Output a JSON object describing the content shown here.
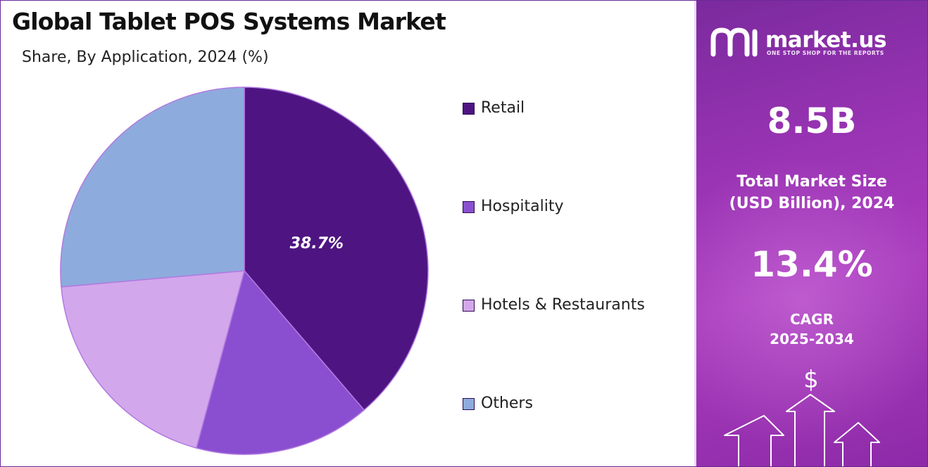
{
  "chart_data": {
    "type": "pie",
    "title": "Global Tablet POS Systems Market",
    "subtitle": "Share, By Application, 2024 (%)",
    "slices": [
      {
        "name": "Retail",
        "value": 38.7,
        "label": "38.7%",
        "color": "#4e1582"
      },
      {
        "name": "Hospitality",
        "value": 15.5,
        "label": "",
        "color": "#8a4fd0"
      },
      {
        "name": "Hotels & Restaurants",
        "value": 19.4,
        "label": "",
        "color": "#d3a7ec"
      },
      {
        "name": "Others",
        "value": 26.4,
        "label": "",
        "color": "#8eabdd"
      }
    ],
    "legend_position": "right",
    "start_angle_deg": 0,
    "direction": "clockwise"
  },
  "panel": {
    "brand_name": "market.us",
    "brand_tagline": "ONE STOP SHOP FOR THE REPORTS",
    "market_size_value": "8.5B",
    "market_size_label_line1": "Total Market Size",
    "market_size_label_line2": "(USD Billion), 2024",
    "cagr_value": "13.4%",
    "cagr_label_line1": "CAGR",
    "cagr_label_line2": "2025-2034",
    "currency_symbol": "$"
  },
  "colors": {
    "panel_purple": "#9a34b4",
    "slice_edge": "#b07ae0"
  }
}
